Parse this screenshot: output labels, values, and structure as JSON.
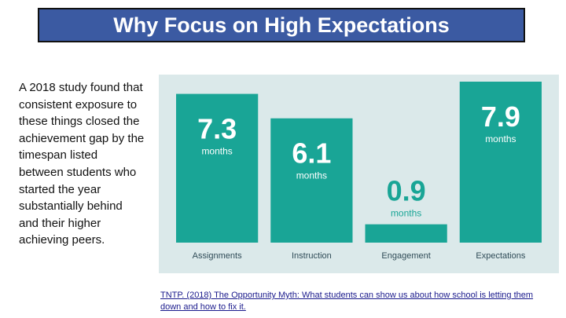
{
  "title": "Why Focus on High Expectations",
  "body_text": "A 2018 study found that consistent exposure to these things closed the achievement gap by the timespan listed between students who started the year substantially behind and their higher achieving peers.",
  "source_text": "TNTP. (2018) The Opportunity Myth: What students can show us about how school is letting them down and how to fix it.",
  "colors": {
    "title_bg": "#3b5aa2",
    "chart_bg": "#dbe9ea",
    "bar": "#19a596",
    "category_text": "#2f4b57"
  },
  "chart_data": {
    "type": "bar",
    "title": "",
    "xlabel": "",
    "ylabel": "",
    "categories": [
      "Assignments",
      "Instruction",
      "Engagement",
      "Expectations"
    ],
    "values": [
      7.3,
      6.1,
      0.9,
      7.9
    ],
    "value_labels": [
      "7.3",
      "6.1",
      "0.9",
      "7.9"
    ],
    "unit_label": "months",
    "ylim": [
      0,
      7.9
    ],
    "grid": false,
    "legend": "none"
  }
}
